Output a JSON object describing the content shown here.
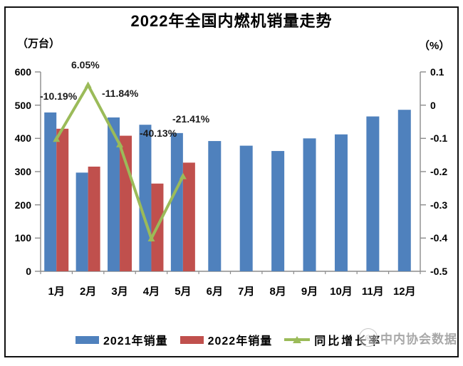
{
  "title": "2022年全国内燃机销量走势",
  "left_axis_unit": "（万台）",
  "right_axis_unit": "（%）",
  "legend": {
    "series1": "2021年销量",
    "series2": "2022年销量",
    "series3": "同比增长率"
  },
  "watermark": "中内协会数据",
  "colors": {
    "bar2021": "#4F81BD",
    "bar2022": "#C0504D",
    "line": "#9BBB59",
    "axis": "#8C8C8C"
  },
  "chart_data": {
    "type": "bar",
    "title": "2022年全国内燃机销量走势",
    "categories": [
      "1月",
      "2月",
      "3月",
      "4月",
      "5月",
      "6月",
      "7月",
      "8月",
      "9月",
      "10月",
      "11月",
      "12月"
    ],
    "series": [
      {
        "name": "2021年销量",
        "type": "bar",
        "axis": "left",
        "values": [
          478,
          297,
          463,
          441,
          416,
          392,
          378,
          362,
          400,
          412,
          466,
          486
        ]
      },
      {
        "name": "2022年销量",
        "type": "bar",
        "axis": "left",
        "values": [
          429,
          315,
          408,
          264,
          327,
          null,
          null,
          null,
          null,
          null,
          null,
          null
        ]
      },
      {
        "name": "同比增长率",
        "type": "line",
        "axis": "right",
        "values": [
          -0.1019,
          0.0605,
          -0.1184,
          -0.4013,
          -0.2141,
          null,
          null,
          null,
          null,
          null,
          null,
          null
        ]
      }
    ],
    "point_labels": [
      "-10.19%",
      "6.05%",
      "-11.84%",
      "-40.13%",
      "-21.41%"
    ],
    "left_axis": {
      "label": "（万台）",
      "min": 0,
      "max": 600,
      "ticks": [
        600,
        500,
        400,
        300,
        200,
        100,
        0
      ]
    },
    "right_axis": {
      "label": "（%）",
      "min": -0.5,
      "max": 0.1,
      "ticks": [
        "0.1",
        "0",
        "-0.1",
        "-0.2",
        "-0.3",
        "-0.4",
        "-0.5"
      ]
    },
    "grid": false,
    "legend_position": "bottom"
  }
}
